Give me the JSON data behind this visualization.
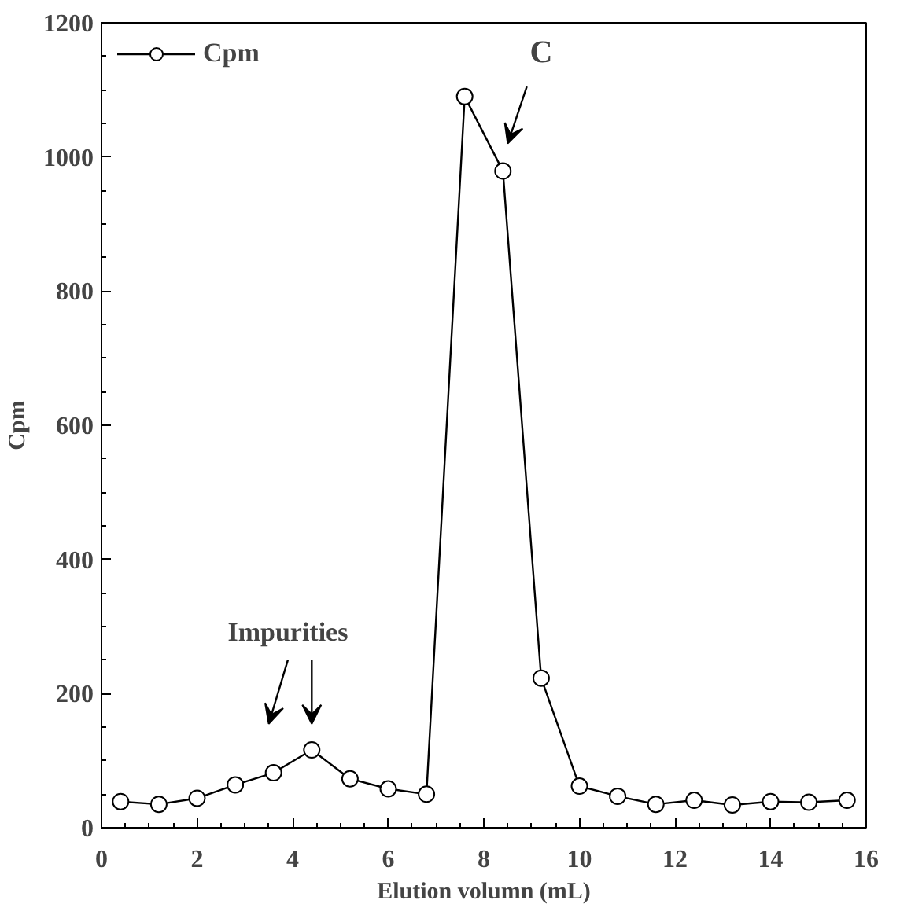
{
  "chart_data": {
    "type": "line",
    "xlabel": "Elution volumn (mL)",
    "ylabel": "Cpm",
    "x": [
      0.4,
      1.2,
      2.0,
      2.8,
      3.6,
      4.4,
      5.2,
      6.0,
      6.8,
      7.6,
      8.4,
      9.2,
      10.0,
      10.8,
      11.6,
      12.4,
      13.2,
      14.0,
      14.8,
      15.6
    ],
    "series": [
      {
        "name": "Cpm",
        "color": "#000000",
        "values": [
          39,
          35,
          44,
          64,
          82,
          116,
          73,
          58,
          50,
          1090,
          979,
          223,
          62,
          47,
          35,
          41,
          34,
          39,
          38,
          41
        ]
      }
    ],
    "xlim": [
      0,
      16
    ],
    "ylim": [
      0,
      1200
    ],
    "xticks": [
      0,
      2,
      4,
      6,
      8,
      10,
      12,
      14,
      16
    ],
    "yticks": [
      0,
      200,
      400,
      600,
      800,
      1000,
      1200
    ],
    "annotations": [
      "Impurities",
      "C"
    ],
    "marker": "circle",
    "line_style": "solid",
    "grid": false,
    "legend": "top left"
  }
}
